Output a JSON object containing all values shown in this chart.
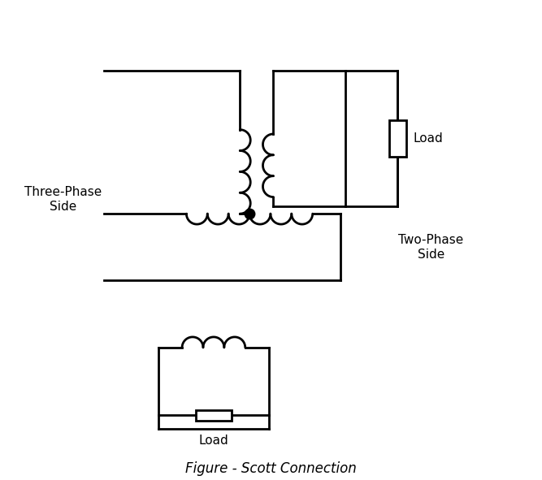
{
  "title": "Figure - Scott Connection",
  "label_three_phase": "Three-Phase\nSide",
  "label_two_phase": "Two-Phase\nSide",
  "label_load_top": "Load",
  "label_load_bottom": "Load",
  "bg_color": "#ffffff",
  "line_color": "#000000",
  "line_width": 2.0,
  "fig_width": 6.67,
  "fig_height": 5.91
}
